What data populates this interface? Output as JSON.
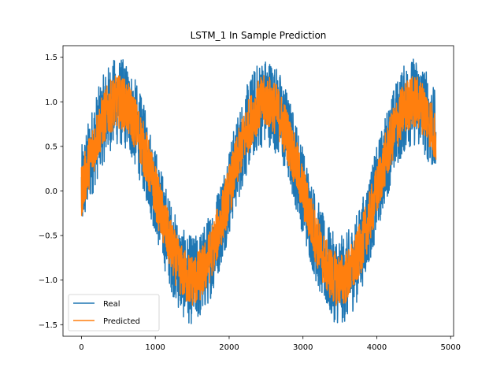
{
  "chart_data": {
    "type": "line",
    "title": "LSTM_1 In Sample Prediction",
    "xlabel": "",
    "ylabel": "",
    "xlim": [
      -250,
      5040
    ],
    "ylim": [
      -1.63,
      1.63
    ],
    "x_ticks": [
      0,
      1000,
      2000,
      3000,
      4000,
      5000
    ],
    "x_tick_labels": [
      "0",
      "1000",
      "2000",
      "3000",
      "4000",
      "5000"
    ],
    "y_ticks": [
      -1.5,
      -1.0,
      -0.5,
      0.0,
      0.5,
      1.0,
      1.5
    ],
    "y_tick_labels": [
      "−1.5",
      "−1.0",
      "−0.5",
      "0.0",
      "0.5",
      "1.0",
      "1.5"
    ],
    "grid": false,
    "legend": {
      "position": "lower-left"
    },
    "series": [
      {
        "name": "Real",
        "color": "#1f77b4",
        "x_range": [
          0,
          4800
        ],
        "period": 2000,
        "amplitude": 1.0,
        "noise_band": 0.5,
        "x": [
          0,
          500,
          1000,
          1500,
          2000,
          2500,
          3000,
          3500,
          4000,
          4500,
          4800
        ],
        "y_center": [
          0.0,
          1.0,
          0.0,
          -1.0,
          0.0,
          1.0,
          0.0,
          -1.0,
          0.0,
          1.0,
          0.59
        ]
      },
      {
        "name": "Predicted",
        "color": "#ff7f0e",
        "x_range": [
          0,
          4800
        ],
        "period": 2000,
        "amplitude": 1.0,
        "noise_band": 0.3,
        "x": [
          0,
          500,
          1000,
          1500,
          2000,
          2500,
          3000,
          3500,
          4000,
          4500,
          4800
        ],
        "y_center": [
          0.0,
          1.0,
          0.0,
          -1.0,
          0.0,
          1.0,
          0.0,
          -1.0,
          0.0,
          1.0,
          0.59
        ]
      }
    ]
  }
}
